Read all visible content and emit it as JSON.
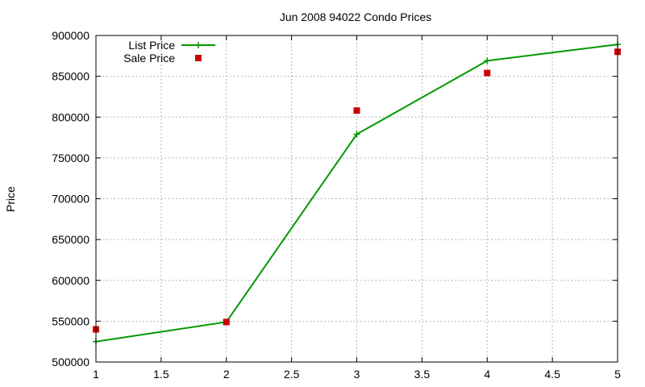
{
  "chart_data": {
    "type": "line",
    "title": "Jun 2008 94022 Condo Prices",
    "xlabel": "",
    "ylabel": "Price",
    "xlim": [
      1,
      5
    ],
    "ylim": [
      500000,
      900000
    ],
    "x_ticks": [
      "1",
      "1.5",
      "2",
      "2.5",
      "3",
      "3.5",
      "4",
      "4.5",
      "5"
    ],
    "y_ticks": [
      "500000",
      "550000",
      "600000",
      "650000",
      "700000",
      "750000",
      "800000",
      "850000",
      "900000"
    ],
    "grid": true,
    "legend_position": "top-left",
    "series": [
      {
        "name": "List Price",
        "style": "linespoints",
        "marker": "plus",
        "color": "#009900",
        "x": [
          1,
          2,
          3,
          4,
          5
        ],
        "y": [
          525000,
          549000,
          779000,
          869000,
          889000
        ]
      },
      {
        "name": "Sale Price",
        "style": "points",
        "marker": "square",
        "color": "#cc0000",
        "x": [
          1,
          2,
          3,
          4,
          5
        ],
        "y": [
          540000,
          549000,
          808000,
          854000,
          880000
        ]
      }
    ]
  }
}
